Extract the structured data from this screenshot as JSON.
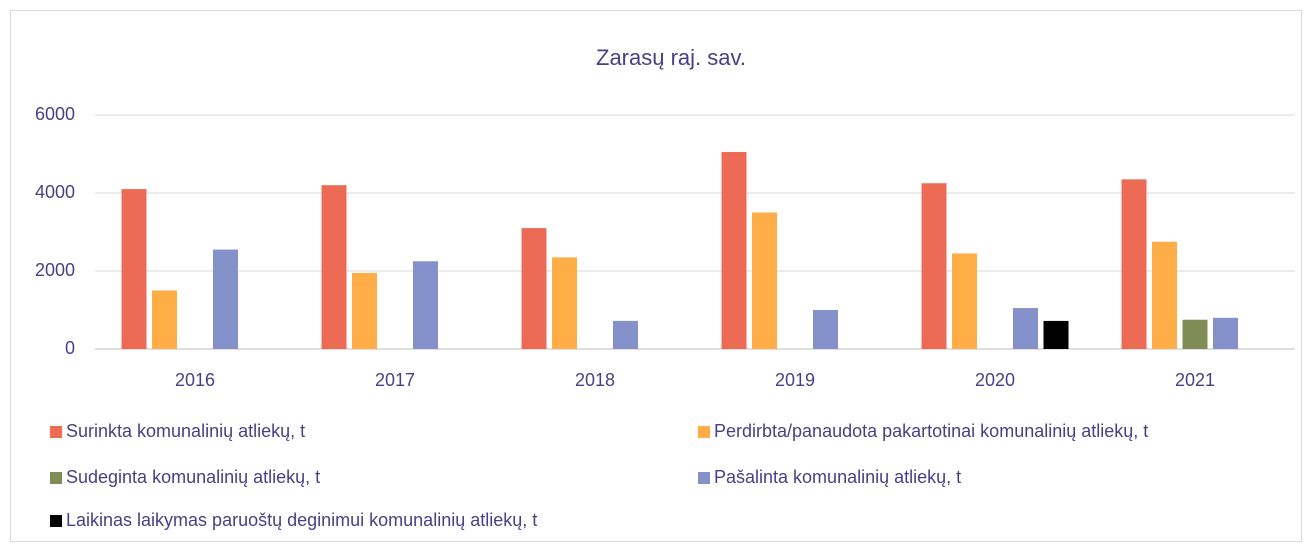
{
  "chart_data": {
    "type": "bar",
    "title": "Zarasų raj. sav.",
    "categories": [
      "2016",
      "2017",
      "2018",
      "2019",
      "2020",
      "2021"
    ],
    "series": [
      {
        "name": "Surinkta komunalinių atliekų, t",
        "color": "#ed6a55",
        "values": [
          4100,
          4200,
          3100,
          5050,
          4250,
          4350
        ]
      },
      {
        "name": "Perdirbta/panaudota pakartotinai komunalinių atliekų, t",
        "color": "#ffad47",
        "values": [
          1500,
          1950,
          2350,
          3500,
          2450,
          2750
        ]
      },
      {
        "name": "Sudeginta komunalinių atliekų, t",
        "color": "#7f8c55",
        "values": [
          null,
          null,
          null,
          null,
          null,
          750
        ]
      },
      {
        "name": "Pašalinta komunalinių atliekų, t",
        "color": "#8591cb",
        "values": [
          2550,
          2250,
          720,
          1000,
          1050,
          800
        ]
      },
      {
        "name": "Laikinas laikymas paruoštų deginimui komunalinių atliekų, t",
        "color": "#000000",
        "values": [
          null,
          null,
          null,
          null,
          720,
          null
        ]
      }
    ],
    "ylim": [
      0,
      6000
    ],
    "yticks": [
      0,
      2000,
      4000,
      6000
    ],
    "grid": true
  }
}
